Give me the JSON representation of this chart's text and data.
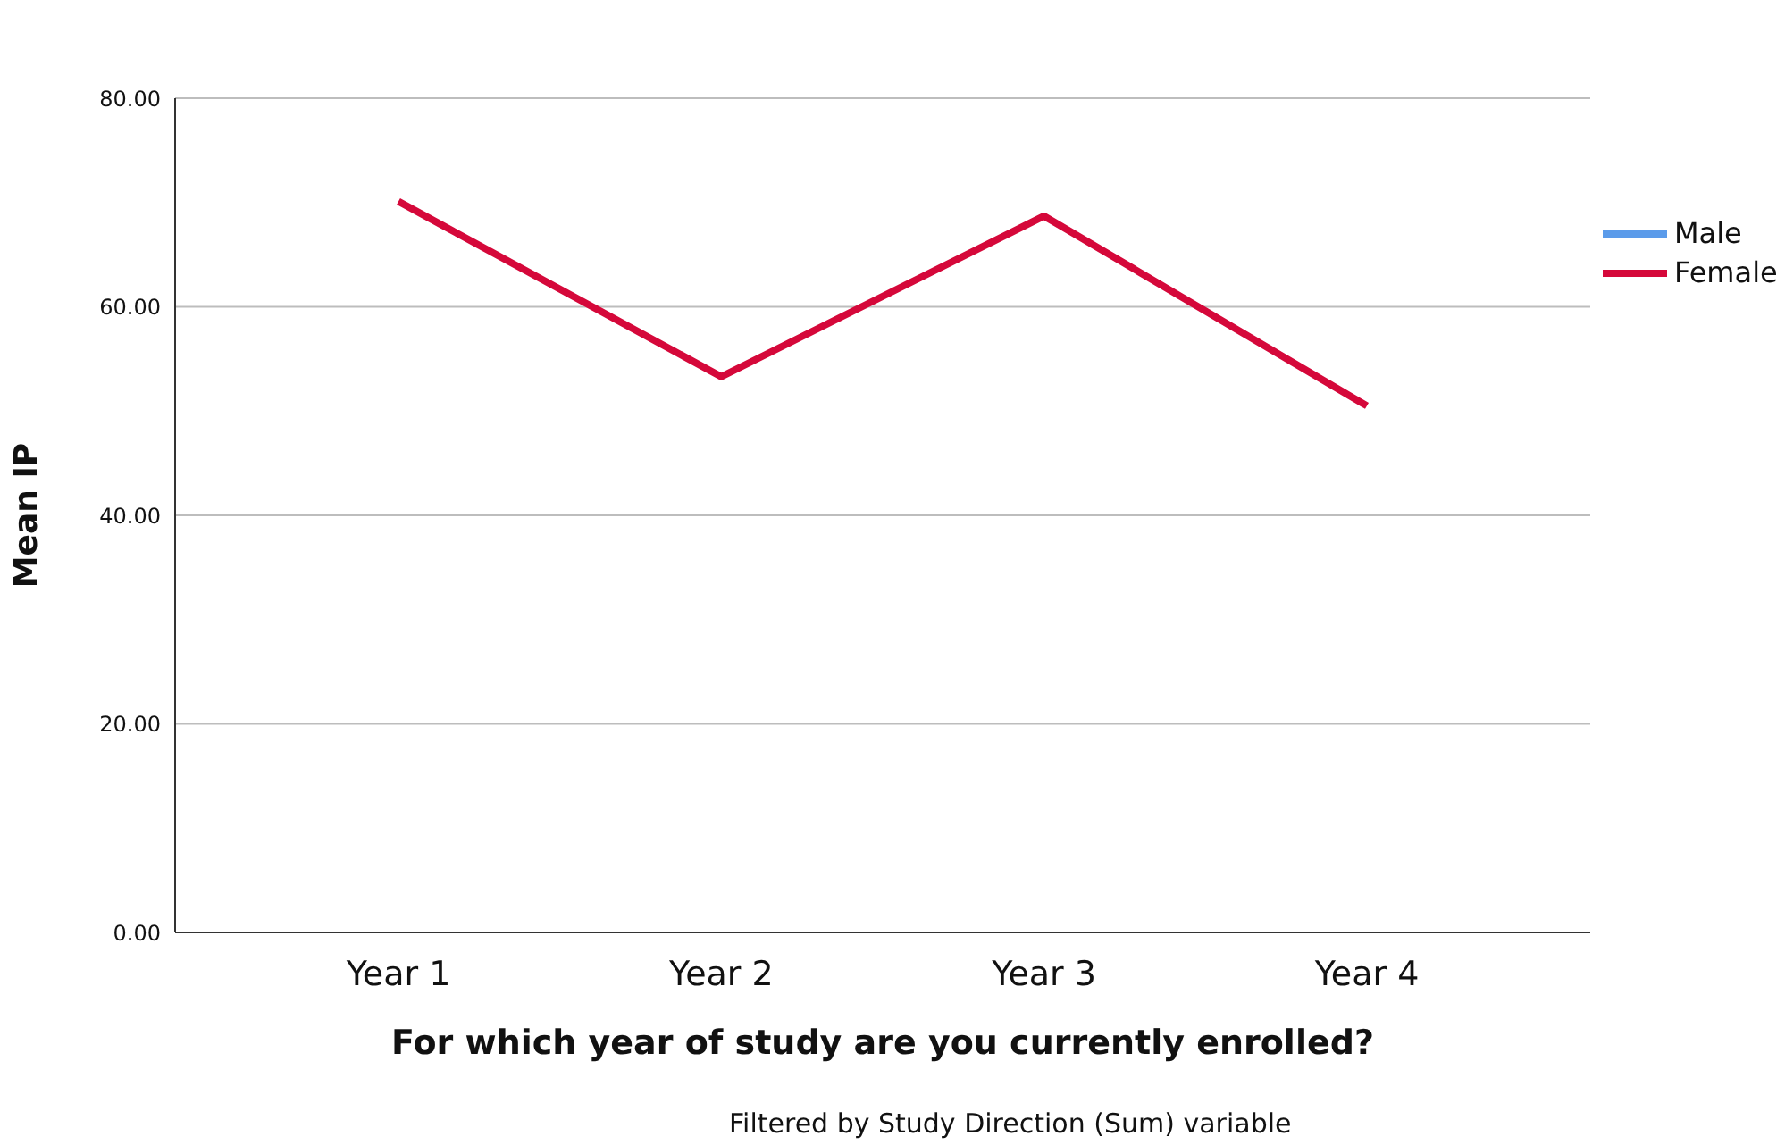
{
  "chart_data": {
    "type": "line",
    "xlabel": "For which year of study are you currently enrolled?",
    "ylabel": "Mean IP",
    "categories": [
      "Year 1",
      "Year 2",
      "Year 3",
      "Year 4"
    ],
    "series": [
      {
        "name": "Male",
        "color": "#5b9bea",
        "values": [
          null,
          null,
          null,
          null
        ]
      },
      {
        "name": "Female",
        "color": "#d5083a",
        "values": [
          70.1,
          53.3,
          68.7,
          50.5
        ]
      }
    ],
    "ylim": [
      0,
      80
    ],
    "yticks": [
      {
        "value": 0,
        "label": "0.00"
      },
      {
        "value": 20,
        "label": "20.00"
      },
      {
        "value": 40,
        "label": "40.00"
      },
      {
        "value": 60,
        "label": "60.00"
      },
      {
        "value": 80,
        "label": "80.00"
      }
    ],
    "grid": "y",
    "legend": "right",
    "marker": "none",
    "line_style": "solid",
    "annotations": [
      "Filtered by Study Direction (Sum) variable"
    ]
  }
}
